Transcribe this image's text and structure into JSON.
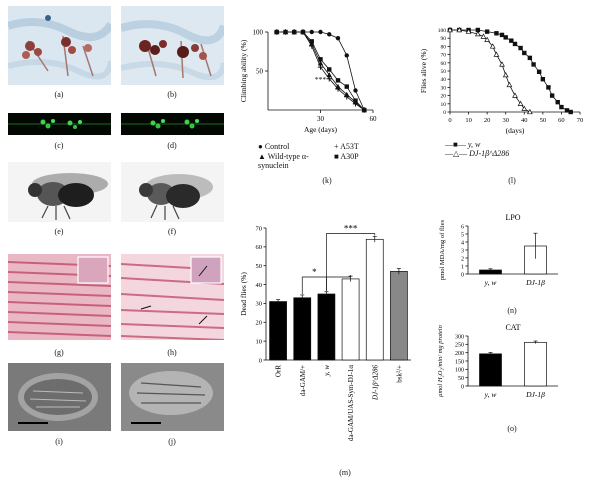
{
  "panel_labels": {
    "a": "(a)",
    "b": "(b)",
    "c": "(c)",
    "d": "(d)",
    "e": "(e)",
    "f": "(f)",
    "g": "(g)",
    "h": "(h)",
    "i": "(i)",
    "j": "(j)",
    "k": "(k)",
    "l": "(l)",
    "m": "(m)",
    "n": "(n)",
    "o": "(o)"
  },
  "chart_data": [
    {
      "id": "k",
      "type": "line",
      "ylabel": "Climbing ability (%)",
      "xlabel": "Age (days)",
      "xlim": [
        0,
        60
      ],
      "ylim": [
        0,
        100
      ],
      "xticks": [
        "30",
        "60"
      ],
      "yticks": [
        "50",
        "100"
      ],
      "annotation": "***",
      "series": [
        {
          "name": "Control",
          "marker": "circle",
          "x": [
            5,
            10,
            15,
            20,
            25,
            30,
            35,
            40,
            45,
            50,
            55
          ],
          "y": [
            100,
            100,
            100,
            100,
            100,
            100,
            97,
            92,
            70,
            25,
            0
          ]
        },
        {
          "name": "Wild-type α-synuclein",
          "marker": "triangle",
          "x": [
            5,
            10,
            15,
            20,
            25,
            30,
            35,
            40,
            45,
            50,
            55
          ],
          "y": [
            100,
            100,
            100,
            100,
            85,
            60,
            45,
            30,
            20,
            10,
            0
          ]
        },
        {
          "name": "A53T",
          "marker": "plus",
          "x": [
            5,
            10,
            15,
            20,
            25,
            30,
            35,
            40,
            45,
            50,
            55
          ],
          "y": [
            100,
            100,
            100,
            100,
            82,
            55,
            40,
            27,
            17,
            8,
            0
          ]
        },
        {
          "name": "A30P",
          "marker": "square",
          "x": [
            5,
            10,
            15,
            20,
            25,
            30,
            35,
            40,
            45,
            50,
            55
          ],
          "y": [
            100,
            100,
            100,
            100,
            88,
            65,
            52,
            38,
            30,
            12,
            0
          ]
        }
      ]
    },
    {
      "id": "l",
      "type": "line",
      "ylabel": "Flies alive (%)",
      "xlabel": "(days)",
      "xlim": [
        0,
        70
      ],
      "ylim": [
        0,
        100
      ],
      "xticks": [
        "0",
        "10",
        "20",
        "30",
        "40",
        "50",
        "60",
        "70"
      ],
      "yticks": [
        "0",
        "10",
        "20",
        "30",
        "40",
        "50",
        "60",
        "70",
        "80",
        "90",
        "100"
      ],
      "series": [
        {
          "name": "y, w",
          "marker": "square",
          "x": [
            0,
            5,
            10,
            15,
            20,
            25,
            28,
            30,
            33,
            35,
            38,
            40,
            43,
            45,
            48,
            50,
            53,
            55,
            58,
            60,
            63,
            65
          ],
          "y": [
            100,
            100,
            100,
            100,
            98,
            96,
            94,
            91,
            87,
            83,
            78,
            72,
            66,
            58,
            49,
            40,
            30,
            20,
            12,
            6,
            2,
            0
          ]
        },
        {
          "name": "DJ-1β^Δ286",
          "marker": "triangle",
          "x": [
            0,
            5,
            10,
            15,
            18,
            20,
            23,
            25,
            28,
            30,
            32,
            35,
            38,
            40,
            43
          ],
          "y": [
            100,
            100,
            98,
            95,
            92,
            88,
            80,
            70,
            58,
            45,
            33,
            20,
            10,
            4,
            0
          ]
        }
      ]
    },
    {
      "id": "m",
      "type": "bar",
      "ylabel": "Dead flies (%)",
      "ylim": [
        0,
        70
      ],
      "yticks": [
        "0",
        "10",
        "20",
        "30",
        "40",
        "50",
        "60",
        "70"
      ],
      "categories": [
        "OrR",
        "da-GAM/+",
        "y, w",
        "da-GAM/UAS-Sym-DJ-1α",
        "DJ-1β^Δ286",
        "bsk²/+"
      ],
      "values": [
        31,
        33,
        35,
        43,
        64,
        47
      ],
      "errors": [
        1,
        1.5,
        1.2,
        1.5,
        1.5,
        1.5
      ],
      "colors": [
        "#000000",
        "#000000",
        "#000000",
        "#ffffff",
        "#ffffff",
        "#888888"
      ],
      "significance": [
        "*",
        "***"
      ]
    },
    {
      "id": "n",
      "type": "bar",
      "title": "LPO",
      "ylabel": "pmol MDA/mg of flies",
      "ylim": [
        0,
        6
      ],
      "yticks": [
        "0",
        "1",
        "2",
        "3",
        "4",
        "5",
        "6"
      ],
      "categories": [
        "y, w",
        "DJ-1β"
      ],
      "values": [
        0.5,
        3.5
      ],
      "errors": [
        0.15,
        1.6
      ],
      "colors": [
        "#000000",
        "#ffffff"
      ]
    },
    {
      "id": "o",
      "type": "bar",
      "title": "CAT",
      "ylabel": "μmol H₂O₂/min/ mg protein",
      "ylim": [
        0,
        300
      ],
      "yticks": [
        "0",
        "50",
        "100",
        "150",
        "200",
        "250",
        "300"
      ],
      "categories": [
        "y, w",
        "DJ-1β"
      ],
      "values": [
        193,
        262
      ],
      "errors": [
        8,
        8
      ],
      "colors": [
        "#000000",
        "#ffffff"
      ]
    }
  ]
}
